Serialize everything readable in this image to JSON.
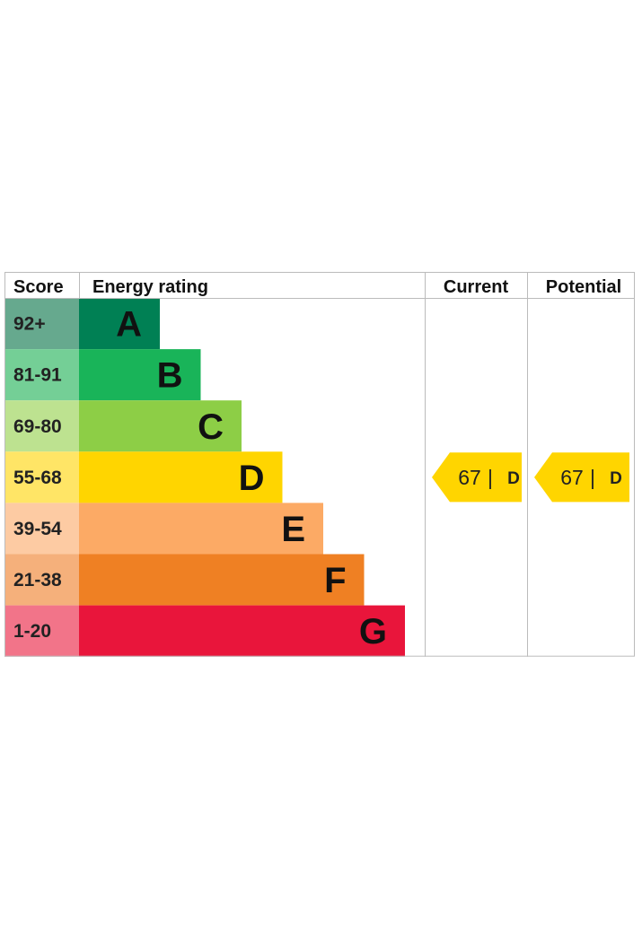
{
  "chart_data": {
    "type": "bar",
    "headers": {
      "score": "Score",
      "rating": "Energy rating",
      "current": "Current",
      "potential": "Potential"
    },
    "bands": [
      {
        "score": "92+",
        "letter": "A",
        "color": "#008054",
        "score_bg": "#66a98e"
      },
      {
        "score": "81-91",
        "letter": "B",
        "color": "#19b459",
        "score_bg": "#74cf96"
      },
      {
        "score": "69-80",
        "letter": "C",
        "color": "#8dce46",
        "score_bg": "#bde290"
      },
      {
        "score": "55-68",
        "letter": "D",
        "color": "#ffd500",
        "score_bg": "#ffe566"
      },
      {
        "score": "39-54",
        "letter": "E",
        "color": "#fcaa65",
        "score_bg": "#fdcba3"
      },
      {
        "score": "21-38",
        "letter": "F",
        "color": "#ef8023",
        "score_bg": "#f5b07b"
      },
      {
        "score": "1-20",
        "letter": "G",
        "color": "#e9153b",
        "score_bg": "#f27489"
      }
    ],
    "current": {
      "value": 67,
      "separator": "|",
      "letter": "D"
    },
    "potential": {
      "value": 67,
      "separator": "|",
      "letter": "D"
    },
    "colors": {
      "grid": "#bbbbbb",
      "pointer": "#ffd500"
    }
  }
}
